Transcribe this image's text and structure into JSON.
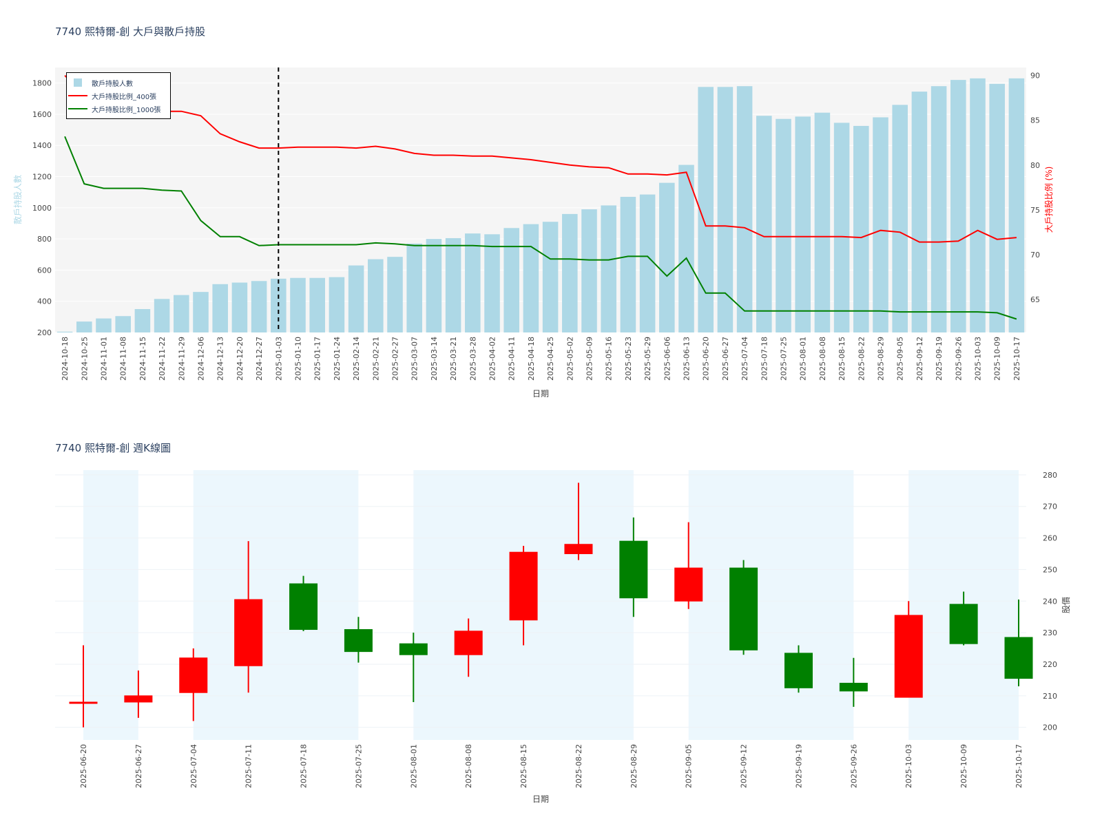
{
  "title_top": "7740 熙特爾-創 大戶與散戶持股",
  "title_bottom": "7740 熙特爾-創 週K線圖",
  "colors": {
    "bar": "#add8e6",
    "line400": "#ff0000",
    "line1000": "#008000",
    "up": "#ff0000",
    "down": "#008000",
    "shade": "#e8f5fd"
  },
  "chart_data": [
    {
      "type": "bar+line",
      "title": "7740 熙特爾-創 大戶與散戶持股",
      "xlabel": "日期",
      "ylabel": "散戶持股人數",
      "y2label": "大戶持股比例 (%)",
      "ylim": [
        200,
        1900
      ],
      "y2lim": [
        61.3,
        90.9
      ],
      "yticks": [
        200,
        400,
        600,
        800,
        1000,
        1200,
        1400,
        1600,
        1800
      ],
      "y2ticks": [
        65,
        70,
        75,
        80,
        85,
        90
      ],
      "legend_position": "top-left",
      "categories": [
        "2024-10-18",
        "2024-10-25",
        "2024-11-01",
        "2024-11-08",
        "2024-11-15",
        "2024-11-22",
        "2024-11-29",
        "2024-12-06",
        "2024-12-13",
        "2024-12-20",
        "2024-12-27",
        "2025-01-03",
        "2025-01-10",
        "2025-01-17",
        "2025-01-24",
        "2025-02-14",
        "2025-02-21",
        "2025-02-27",
        "2025-03-07",
        "2025-03-14",
        "2025-03-21",
        "2025-03-28",
        "2025-04-02",
        "2025-04-11",
        "2025-04-18",
        "2025-04-25",
        "2025-05-02",
        "2025-05-09",
        "2025-05-16",
        "2025-05-23",
        "2025-05-29",
        "2025-06-06",
        "2025-06-13",
        "2025-06-20",
        "2025-06-27",
        "2025-07-04",
        "2025-07-18",
        "2025-07-25",
        "2025-08-01",
        "2025-08-08",
        "2025-08-15",
        "2025-08-22",
        "2025-08-29",
        "2025-09-05",
        "2025-09-12",
        "2025-09-19",
        "2025-09-26",
        "2025-10-03",
        "2025-10-09",
        "2025-10-17"
      ],
      "marker_date": "2025-01-03",
      "series": [
        {
          "name": "散戶持股人數",
          "kind": "bar",
          "axis": "y",
          "values": [
            205,
            270,
            290,
            305,
            350,
            415,
            440,
            460,
            510,
            520,
            530,
            545,
            550,
            550,
            555,
            630,
            670,
            685,
            770,
            800,
            805,
            835,
            830,
            870,
            895,
            910,
            960,
            990,
            1015,
            1070,
            1085,
            1160,
            1275,
            1775,
            1775,
            1780,
            1590,
            1570,
            1585,
            1610,
            1545,
            1525,
            1580,
            1660,
            1745,
            1780,
            1820,
            1830,
            1795,
            1830
          ]
        },
        {
          "name": "大戶持股比例_400張",
          "kind": "line",
          "axis": "y2",
          "values": [
            90.0,
            87.8,
            87.2,
            87.0,
            86.3,
            86.0,
            86.0,
            85.5,
            83.5,
            82.6,
            81.9,
            81.9,
            82.0,
            82.0,
            82.0,
            81.9,
            82.1,
            81.8,
            81.3,
            81.1,
            81.1,
            81.0,
            81.0,
            80.8,
            80.6,
            80.3,
            80.0,
            79.8,
            79.7,
            79.0,
            79.0,
            78.9,
            79.2,
            73.2,
            73.2,
            73.0,
            72.0,
            72.0,
            72.0,
            72.0,
            72.0,
            71.9,
            72.7,
            72.5,
            71.4,
            71.4,
            71.5,
            72.7,
            71.7,
            71.9
          ]
        },
        {
          "name": "大戶持股比例_1000張",
          "kind": "line",
          "axis": "y2",
          "values": [
            83.2,
            77.9,
            77.4,
            77.4,
            77.4,
            77.2,
            77.1,
            73.8,
            72.0,
            72.0,
            71.0,
            71.1,
            71.1,
            71.1,
            71.1,
            71.1,
            71.3,
            71.2,
            71.0,
            71.0,
            71.0,
            71.0,
            70.9,
            70.9,
            70.9,
            69.5,
            69.5,
            69.4,
            69.4,
            69.8,
            69.8,
            67.6,
            69.6,
            65.7,
            65.7,
            63.7,
            63.7,
            63.7,
            63.7,
            63.7,
            63.7,
            63.7,
            63.7,
            63.6,
            63.6,
            63.6,
            63.6,
            63.6,
            63.5,
            62.8
          ]
        }
      ]
    },
    {
      "type": "candlestick",
      "title": "7740 熙特爾-創 週K線圖",
      "xlabel": "日期",
      "ylabel": "股價",
      "ylim": [
        196,
        281.5
      ],
      "yticks": [
        200,
        210,
        220,
        230,
        240,
        250,
        260,
        270,
        280
      ],
      "candles": [
        {
          "date": "2025-06-20",
          "open": 208,
          "high": 226,
          "low": 200,
          "close": 208
        },
        {
          "date": "2025-06-27",
          "open": 208,
          "high": 218,
          "low": 203,
          "close": 210
        },
        {
          "date": "2025-07-04",
          "open": 211,
          "high": 225,
          "low": 202,
          "close": 222
        },
        {
          "date": "2025-07-11",
          "open": 219.5,
          "high": 259,
          "low": 211,
          "close": 240.5
        },
        {
          "date": "2025-07-18",
          "open": 245.5,
          "high": 248,
          "low": 230.5,
          "close": 231
        },
        {
          "date": "2025-07-25",
          "open": 231,
          "high": 235,
          "low": 220.5,
          "close": 224
        },
        {
          "date": "2025-08-01",
          "open": 226.5,
          "high": 230,
          "low": 208,
          "close": 223
        },
        {
          "date": "2025-08-08",
          "open": 223,
          "high": 234.5,
          "low": 216,
          "close": 230.5
        },
        {
          "date": "2025-08-15",
          "open": 234,
          "high": 257.5,
          "low": 226,
          "close": 255.5
        },
        {
          "date": "2025-08-22",
          "open": 255,
          "high": 277.5,
          "low": 253,
          "close": 258
        },
        {
          "date": "2025-08-29",
          "open": 259,
          "high": 266.5,
          "low": 235,
          "close": 241
        },
        {
          "date": "2025-09-05",
          "open": 240,
          "high": 265,
          "low": 237.5,
          "close": 250.5
        },
        {
          "date": "2025-09-12",
          "open": 250.5,
          "high": 253,
          "low": 223,
          "close": 224.5
        },
        {
          "date": "2025-09-19",
          "open": 223.5,
          "high": 226,
          "low": 211,
          "close": 212.5
        },
        {
          "date": "2025-09-26",
          "open": 214,
          "high": 222,
          "low": 206.5,
          "close": 211.5
        },
        {
          "date": "2025-10-03",
          "open": 209.5,
          "high": 240,
          "low": 209.5,
          "close": 235.5
        },
        {
          "date": "2025-10-09",
          "open": 239,
          "high": 243,
          "low": 226,
          "close": 226.5
        },
        {
          "date": "2025-10-17",
          "open": 228.5,
          "high": 240.5,
          "low": 213,
          "close": 215.5
        }
      ],
      "shaded_ranges": [
        [
          "2025-06-20",
          "2025-06-27"
        ],
        [
          "2025-07-04",
          "2025-07-25"
        ],
        [
          "2025-08-01",
          "2025-08-29"
        ],
        [
          "2025-09-05",
          "2025-09-26"
        ],
        [
          "2025-10-03",
          "2025-10-17"
        ]
      ]
    }
  ]
}
